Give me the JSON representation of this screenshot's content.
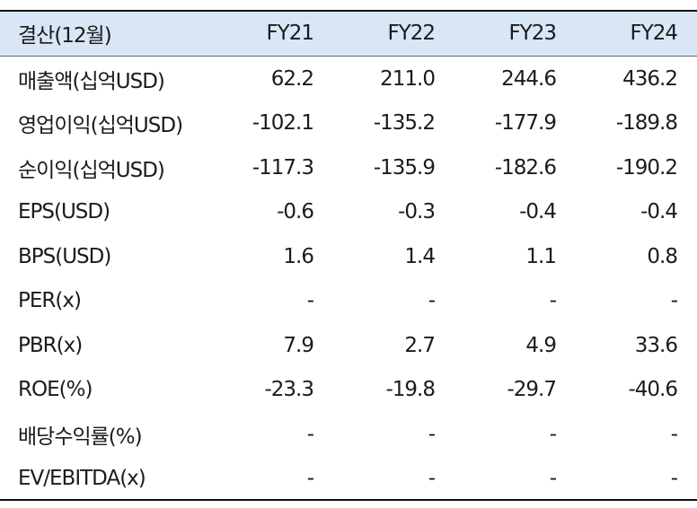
{
  "table": {
    "header": {
      "label": "결산(12월)",
      "years": [
        "FY21",
        "FY22",
        "FY23",
        "FY24"
      ]
    },
    "rows": [
      {
        "label": "매출액(십억USD)",
        "values": [
          "62.2",
          "211.0",
          "244.6",
          "436.2"
        ]
      },
      {
        "label": "영업이익(십억USD)",
        "values": [
          "-102.1",
          "-135.2",
          "-177.9",
          "-189.8"
        ]
      },
      {
        "label": "순이익(십억USD)",
        "values": [
          "-117.3",
          "-135.9",
          "-182.6",
          "-190.2"
        ]
      },
      {
        "label": "EPS(USD)",
        "values": [
          "-0.6",
          "-0.3",
          "-0.4",
          "-0.4"
        ]
      },
      {
        "label": "BPS(USD)",
        "values": [
          "1.6",
          "1.4",
          "1.1",
          "0.8"
        ]
      },
      {
        "label": "PER(x)",
        "values": [
          "-",
          "-",
          "-",
          "-"
        ]
      },
      {
        "label": "PBR(x)",
        "values": [
          "7.9",
          "2.7",
          "4.9",
          "33.6"
        ]
      },
      {
        "label": "ROE(%)",
        "values": [
          "-23.3",
          "-19.8",
          "-29.7",
          "-40.6"
        ]
      },
      {
        "label": "배당수익률(%)",
        "values": [
          "-",
          "-",
          "-",
          "-"
        ]
      },
      {
        "label": "EV/EBITDA(x)",
        "values": [
          "-",
          "-",
          "-",
          "-"
        ]
      }
    ]
  },
  "colors": {
    "header_background": "#d9e6f6",
    "rule": "#111111"
  }
}
